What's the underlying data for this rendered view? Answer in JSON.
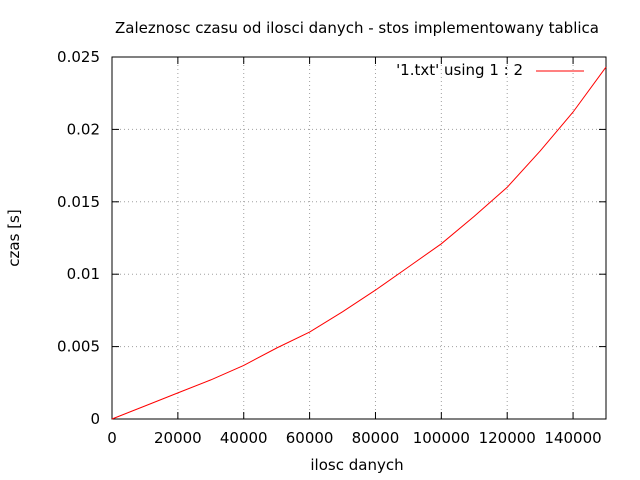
{
  "chart_data": {
    "type": "line",
    "title": "Zaleznosc czasu od ilosci danych - stos implementowany tablica",
    "xlabel": "ilosc danych",
    "ylabel": "czas [s]",
    "xlim": [
      0,
      150000
    ],
    "ylim": [
      0,
      0.025
    ],
    "x_ticks": [
      0,
      20000,
      40000,
      60000,
      80000,
      100000,
      120000,
      140000
    ],
    "x_tick_labels": [
      "0",
      "20000",
      "40000",
      "60000",
      "80000",
      "100000",
      "120000",
      "140000"
    ],
    "y_ticks": [
      0,
      0.005,
      0.01,
      0.015,
      0.02,
      0.025
    ],
    "y_tick_labels": [
      "0",
      "0.005",
      "0.01",
      "0.015",
      "0.02",
      "0.025"
    ],
    "grid": true,
    "legend_position": "top-right",
    "series": [
      {
        "name": "'1.txt' using 1 : 2",
        "color": "#ff0000",
        "x": [
          0,
          10000,
          20000,
          30000,
          40000,
          50000,
          60000,
          70000,
          80000,
          90000,
          100000,
          110000,
          120000,
          130000,
          140000,
          150000
        ],
        "y": [
          0,
          0.0009,
          0.0018,
          0.0027,
          0.0037,
          0.0049,
          0.006,
          0.0074,
          0.0089,
          0.0105,
          0.0121,
          0.014,
          0.016,
          0.0185,
          0.0212,
          0.0243
        ]
      }
    ]
  }
}
